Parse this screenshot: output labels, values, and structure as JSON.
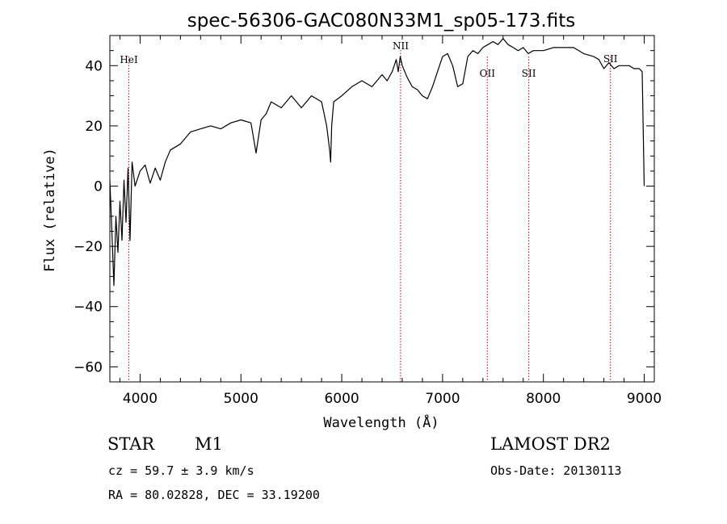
{
  "chart_data": {
    "type": "line",
    "title": "spec-56306-GAC080N33M1_sp05-173.fits",
    "xlabel": "Wavelength (Å)",
    "ylabel": "Flux (relative)",
    "xlim": [
      3700,
      9100
    ],
    "ylim": [
      -65,
      50
    ],
    "x_ticks": [
      4000,
      5000,
      6000,
      7000,
      8000,
      9000
    ],
    "x_tick_labels": [
      "4000",
      "5000",
      "6000",
      "7000",
      "8000",
      "9000"
    ],
    "y_ticks": [
      -60,
      -40,
      -20,
      0,
      20,
      40
    ],
    "y_tick_labels": [
      "−60",
      "−40",
      "−20",
      "0",
      "20",
      "40"
    ],
    "grid": false,
    "line_color": "#000000",
    "marker_color": "#cc0000",
    "series": [
      {
        "x": [
          3700,
          3720,
          3740,
          3760,
          3780,
          3800,
          3820,
          3840,
          3860,
          3880,
          3900,
          3920,
          3950,
          4000,
          4050,
          4100,
          4150,
          4200,
          4250,
          4300,
          4400,
          4500,
          4600,
          4700,
          4800,
          4900,
          5000,
          5100,
          5150,
          5200,
          5250,
          5300,
          5400,
          5500,
          5600,
          5700,
          5800,
          5850,
          5880,
          5890,
          5900,
          5920,
          6000,
          6100,
          6200,
          6300,
          6400,
          6450,
          6500,
          6540,
          6560,
          6580,
          6600,
          6650,
          6700,
          6750,
          6800,
          6850,
          6900,
          6950,
          7000,
          7050,
          7100,
          7150,
          7200,
          7250,
          7300,
          7350,
          7400,
          7450,
          7500,
          7550,
          7600,
          7650,
          7700,
          7750,
          7800,
          7850,
          7900,
          8000,
          8100,
          8200,
          8300,
          8400,
          8500,
          8550,
          8600,
          8650,
          8700,
          8750,
          8800,
          8850,
          8900,
          8950,
          8980,
          9000
        ],
        "y": [
          2,
          -15,
          -33,
          -10,
          -22,
          -5,
          -18,
          2,
          -12,
          6,
          -18,
          8,
          0,
          5,
          7,
          1,
          6,
          2,
          8,
          12,
          14,
          18,
          19,
          20,
          19,
          21,
          22,
          21,
          11,
          22,
          24,
          28,
          26,
          30,
          26,
          30,
          28,
          20,
          12,
          8,
          20,
          28,
          30,
          33,
          35,
          33,
          37,
          35,
          38,
          42,
          38,
          43,
          40,
          36,
          33,
          32,
          30,
          29,
          33,
          38,
          43,
          44,
          40,
          33,
          34,
          43,
          45,
          44,
          46,
          47,
          48,
          47,
          49,
          47,
          46,
          45,
          46,
          44,
          45,
          45,
          46,
          46,
          46,
          44,
          43,
          42,
          39,
          41,
          39,
          40,
          40,
          40,
          39,
          39,
          38,
          0
        ]
      }
    ],
    "line_markers": [
      {
        "label": "HeI",
        "x": 3889
      },
      {
        "label": "NII",
        "x": 6584
      },
      {
        "label": "OII",
        "x": 7444
      },
      {
        "label": "SII",
        "x": 7855
      },
      {
        "label": "SII",
        "x": 8665
      }
    ]
  },
  "info": {
    "class_label": "STAR",
    "subclass_label": "M1",
    "survey": "LAMOST DR2",
    "cz_text": "cz = 59.7 ± 3.9 km/s",
    "obs_date_text": "Obs-Date: 20130113",
    "radec_text": "RA =  80.02828, DEC =  33.19200"
  }
}
